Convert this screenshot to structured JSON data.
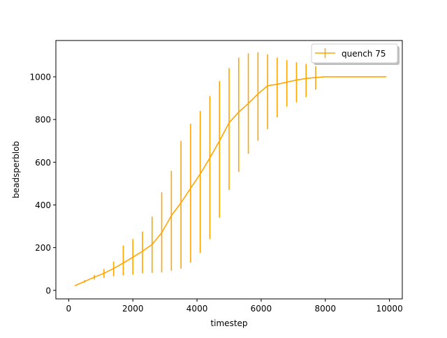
{
  "chart_data": {
    "type": "line",
    "title": "",
    "xlabel": "timestep",
    "ylabel": "beadsperblob",
    "xlim": [
      -400,
      10400
    ],
    "ylim": [
      -40,
      1170
    ],
    "xticks": [
      0,
      2000,
      4000,
      6000,
      8000,
      10000
    ],
    "yticks": [
      0,
      200,
      400,
      600,
      800,
      1000
    ],
    "grid": false,
    "legend_position": "top-right",
    "series": [
      {
        "name": "quench 75",
        "color": "#FFA500",
        "x": [
          200,
          500,
          800,
          1100,
          1400,
          1700,
          2000,
          2300,
          2600,
          2900,
          3200,
          3500,
          3800,
          4100,
          4400,
          4700,
          5000,
          5300,
          5600,
          5900,
          6200,
          6500,
          6800,
          7100,
          7400,
          7700,
          8000,
          8300,
          8600,
          8900,
          9200,
          9500,
          9900
        ],
        "y": [
          22,
          42,
          62,
          80,
          102,
          128,
          155,
          183,
          215,
          270,
          350,
          410,
          478,
          545,
          620,
          700,
          785,
          835,
          875,
          920,
          958,
          965,
          975,
          985,
          992,
          997,
          1000,
          1000,
          1000,
          1000,
          1000,
          1000,
          1000
        ],
        "yerr_low": [
          20,
          36,
          50,
          58,
          66,
          70,
          74,
          80,
          82,
          84,
          92,
          102,
          130,
          175,
          240,
          340,
          470,
          555,
          640,
          700,
          755,
          810,
          860,
          880,
          905,
          940,
          1000,
          1000,
          1000,
          1000,
          1000,
          1000,
          1000
        ],
        "yerr_high": [
          24,
          48,
          72,
          100,
          135,
          210,
          240,
          275,
          345,
          460,
          560,
          700,
          780,
          840,
          910,
          980,
          1040,
          1090,
          1110,
          1115,
          1105,
          1090,
          1078,
          1068,
          1060,
          1050,
          1000,
          1000,
          1000,
          1000,
          1000,
          1000,
          1000
        ]
      }
    ]
  }
}
